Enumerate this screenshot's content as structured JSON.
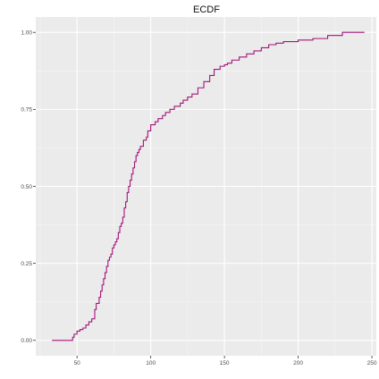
{
  "chart_data": {
    "type": "line",
    "title": "ECDF",
    "xlabel": "",
    "ylabel": "",
    "xlim": [
      22,
      253
    ],
    "ylim": [
      -0.05,
      1.05
    ],
    "x_ticks": [
      50,
      100,
      150,
      200,
      250
    ],
    "y_ticks": [
      0,
      0.25,
      0.5,
      0.75,
      1
    ],
    "x_tick_labels": [
      "50",
      "100",
      "150",
      "200",
      "250"
    ],
    "y_tick_labels": [
      "0.00",
      "0.25",
      "0.50",
      "0.75",
      "1.00"
    ],
    "grid": true,
    "step": true,
    "series": [
      {
        "color": "#a3157a",
        "x": [
          33,
          47,
          48,
          50,
          52,
          54,
          56,
          58,
          60,
          62,
          63,
          65,
          66,
          67,
          68,
          69,
          70,
          71,
          72,
          73,
          74,
          75,
          76,
          77,
          78,
          79,
          80,
          81,
          82,
          83,
          84,
          85,
          86,
          87,
          88,
          89,
          90,
          91,
          92,
          93,
          95,
          97,
          98,
          100,
          103,
          105,
          108,
          110,
          113,
          116,
          120,
          122,
          125,
          128,
          132,
          136,
          140,
          143,
          147,
          150,
          152,
          155,
          160,
          165,
          170,
          175,
          180,
          185,
          190,
          200,
          210,
          220,
          230,
          245
        ],
        "y": [
          0.0,
          0.01,
          0.02,
          0.03,
          0.035,
          0.04,
          0.05,
          0.06,
          0.07,
          0.1,
          0.12,
          0.14,
          0.16,
          0.18,
          0.2,
          0.22,
          0.24,
          0.26,
          0.27,
          0.28,
          0.3,
          0.31,
          0.32,
          0.33,
          0.35,
          0.37,
          0.38,
          0.4,
          0.43,
          0.45,
          0.48,
          0.5,
          0.52,
          0.54,
          0.56,
          0.58,
          0.6,
          0.61,
          0.62,
          0.63,
          0.65,
          0.66,
          0.68,
          0.7,
          0.71,
          0.72,
          0.73,
          0.74,
          0.75,
          0.76,
          0.77,
          0.78,
          0.79,
          0.8,
          0.82,
          0.84,
          0.86,
          0.88,
          0.89,
          0.895,
          0.9,
          0.91,
          0.92,
          0.93,
          0.94,
          0.95,
          0.96,
          0.965,
          0.97,
          0.975,
          0.98,
          0.99,
          1.0,
          1.0
        ]
      }
    ]
  },
  "colors": {
    "panel": "#ebebeb",
    "grid_major": "#ffffff",
    "grid_minor": "#f5f5f5",
    "line": "#a3157a",
    "axis_text": "#4d4d4d",
    "tick": "#333333"
  }
}
